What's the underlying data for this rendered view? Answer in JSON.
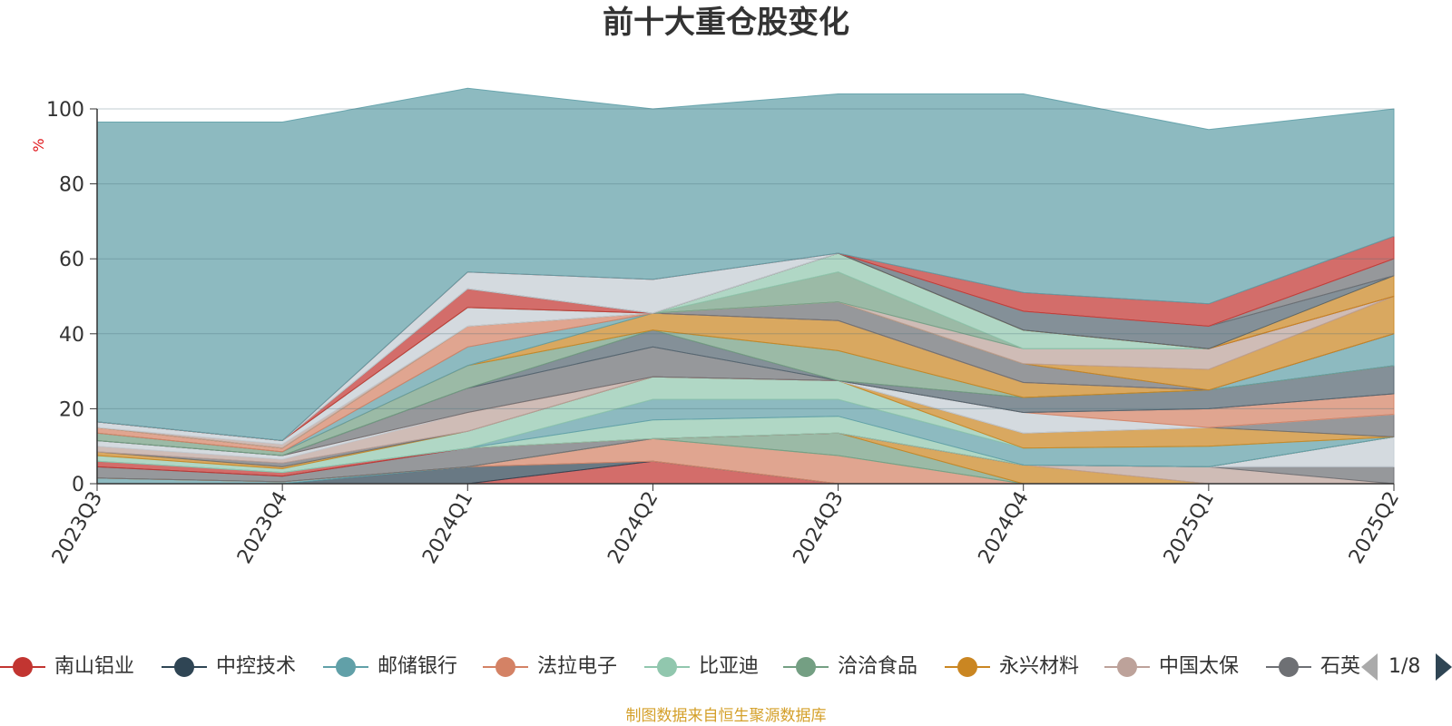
{
  "chart_data": {
    "type": "area",
    "stacked": true,
    "title": "前十大重仓股变化",
    "ylabel": "%",
    "ylim": [
      0,
      100
    ],
    "yticks": [
      0,
      20,
      40,
      60,
      80,
      100
    ],
    "grid": true,
    "legend_position": "bottom",
    "categories": [
      "2023Q3",
      "2023Q4",
      "2024Q1",
      "2024Q2",
      "2024Q3",
      "2024Q4",
      "2025Q1",
      "2025Q2"
    ],
    "series": [
      {
        "name": "南山铝业",
        "color": "#c23531",
        "values": [
          0,
          0,
          0,
          6,
          0,
          0,
          0,
          0
        ]
      },
      {
        "name": "中控技术",
        "color": "#2f4554",
        "values": [
          0,
          0,
          4.5,
          0,
          0,
          0,
          0,
          0
        ]
      },
      {
        "name": "邮储银行",
        "color": "#61a0a8",
        "values": [
          1.5,
          0.5,
          0,
          0,
          0,
          0,
          0,
          0
        ]
      },
      {
        "name": "法拉电子",
        "color": "#d48265",
        "values": [
          0,
          0,
          0,
          6,
          7.5,
          0,
          0,
          0
        ]
      },
      {
        "name": "比亚迪",
        "color": "#91c7ae",
        "values": [
          0,
          0,
          0,
          0,
          0,
          0,
          0,
          0
        ]
      },
      {
        "name": "洽洽食品",
        "color": "#749f83",
        "values": [
          0,
          0,
          0,
          0,
          6,
          0,
          0,
          0
        ]
      },
      {
        "name": "永兴材料",
        "color": "#ca8622",
        "values": [
          0,
          0,
          0,
          0,
          0,
          5,
          0,
          0
        ]
      },
      {
        "name": "中国太保",
        "color": "#bda29a",
        "values": [
          0,
          0,
          0,
          0,
          0,
          0,
          4.5,
          0
        ]
      },
      {
        "name": "石英股份",
        "color": "#6e7074",
        "values": [
          3,
          1.5,
          5,
          0,
          0,
          0,
          0,
          4.5
        ]
      },
      {
        "name": "",
        "color": "#c4ccd3",
        "values": [
          0,
          0,
          0,
          0,
          0,
          0,
          0,
          8
        ]
      },
      {
        "name": "",
        "color": "#546570",
        "values": [
          0,
          0,
          0,
          0,
          0,
          0,
          0,
          0
        ]
      },
      {
        "name": "",
        "color": "#c23531",
        "values": [
          1.5,
          1,
          0,
          0,
          0,
          0,
          0,
          0
        ]
      },
      {
        "name": "",
        "color": "#91c7ae",
        "values": [
          0,
          0,
          0,
          5,
          4.5,
          0,
          0,
          0
        ]
      },
      {
        "name": "",
        "color": "#61a0a8",
        "values": [
          0,
          0,
          0,
          5.5,
          4.5,
          4.5,
          5.5,
          0
        ]
      },
      {
        "name": "",
        "color": "#91c7ae",
        "values": [
          1.5,
          1,
          4.5,
          6,
          5,
          0,
          0,
          0
        ]
      },
      {
        "name": "",
        "color": "#ca8622",
        "values": [
          1,
          0.5,
          0,
          0,
          0,
          4,
          5,
          0
        ]
      },
      {
        "name": "",
        "color": "#6e7074",
        "values": [
          0,
          1,
          0,
          0,
          0,
          0,
          0,
          6
        ]
      },
      {
        "name": "",
        "color": "#bda29a",
        "values": [
          1.5,
          1,
          5,
          0,
          0,
          0,
          0,
          0
        ]
      },
      {
        "name": "",
        "color": "#c4ccd3",
        "values": [
          1.5,
          1,
          0,
          0,
          0,
          5.5,
          0,
          0
        ]
      },
      {
        "name": "",
        "color": "#d48265",
        "values": [
          0,
          0,
          0,
          0,
          0,
          0,
          5,
          5.5
        ]
      },
      {
        "name": "",
        "color": "#6e7074",
        "values": [
          0,
          0,
          6.5,
          8,
          0,
          0,
          0,
          0
        ]
      },
      {
        "name": "",
        "color": "#546570",
        "values": [
          0,
          0,
          0,
          4.5,
          0,
          4,
          5,
          7.5
        ]
      },
      {
        "name": "",
        "color": "#749f83",
        "values": [
          2,
          1,
          6,
          0,
          8,
          0,
          0,
          0
        ]
      },
      {
        "name": "",
        "color": "#ca8622",
        "values": [
          0,
          0,
          0,
          4.5,
          8,
          4,
          0,
          0
        ]
      },
      {
        "name": "",
        "color": "#61a0a8",
        "values": [
          0,
          0,
          5,
          0,
          0,
          0,
          0,
          8.5
        ]
      },
      {
        "name": "",
        "color": "#d48265",
        "values": [
          1.5,
          1,
          5.5,
          0,
          0,
          0,
          0,
          0
        ]
      },
      {
        "name": "",
        "color": "#6e7074",
        "values": [
          0,
          0,
          0,
          0,
          5,
          5,
          0,
          0
        ]
      },
      {
        "name": "",
        "color": "#ca8622",
        "values": [
          0,
          0,
          0,
          0,
          0,
          0,
          5.5,
          10
        ]
      },
      {
        "name": "",
        "color": "#bda29a",
        "values": [
          0,
          1,
          0,
          0,
          0,
          4,
          5.5,
          0
        ]
      },
      {
        "name": "",
        "color": "#c4ccd3",
        "values": [
          1.5,
          1,
          5,
          0,
          0,
          0,
          0,
          0
        ]
      },
      {
        "name": "",
        "color": "#749f83",
        "values": [
          0,
          0,
          0,
          0,
          8,
          0,
          0,
          0
        ]
      },
      {
        "name": "",
        "color": "#91c7ae",
        "values": [
          0,
          0,
          0,
          0,
          5,
          5,
          0,
          0
        ]
      },
      {
        "name": "",
        "color": "#c23531",
        "values": [
          0,
          0,
          5,
          0,
          0,
          0,
          0,
          0
        ]
      },
      {
        "name": "",
        "color": "#ca8622",
        "values": [
          0,
          0,
          0,
          0,
          0,
          0,
          0,
          5.5
        ]
      },
      {
        "name": "",
        "color": "#546570",
        "values": [
          0,
          0,
          0,
          0,
          0,
          5,
          6,
          0
        ]
      },
      {
        "name": "",
        "color": "#6e7074",
        "values": [
          0,
          0,
          0,
          0,
          0,
          0,
          0,
          4.5
        ]
      },
      {
        "name": "",
        "color": "#c4ccd3",
        "values": [
          0,
          0,
          4.5,
          9,
          0,
          0,
          0,
          0
        ]
      },
      {
        "name": "",
        "color": "#c23531",
        "values": [
          0,
          0,
          0,
          0,
          0,
          5,
          6,
          6
        ]
      },
      {
        "name": "",
        "color": "#61a0a8",
        "values": [
          80,
          85,
          49,
          45.5,
          42.5,
          53,
          46.5,
          34
        ]
      }
    ]
  },
  "legend": {
    "items": [
      {
        "label": "南山铝业",
        "color": "#c23531"
      },
      {
        "label": "中控技术",
        "color": "#2f4554"
      },
      {
        "label": "邮储银行",
        "color": "#61a0a8"
      },
      {
        "label": "法拉电子",
        "color": "#d48265"
      },
      {
        "label": "比亚迪",
        "color": "#91c7ae"
      },
      {
        "label": "洽洽食品",
        "color": "#749f83"
      },
      {
        "label": "永兴材料",
        "color": "#ca8622"
      },
      {
        "label": "中国太保",
        "color": "#bda29a"
      },
      {
        "label": "石英股份",
        "color": "#6e7074"
      }
    ],
    "page": "1/8"
  },
  "footer": {
    "source": "制图数据来自恒生聚源数据库"
  }
}
